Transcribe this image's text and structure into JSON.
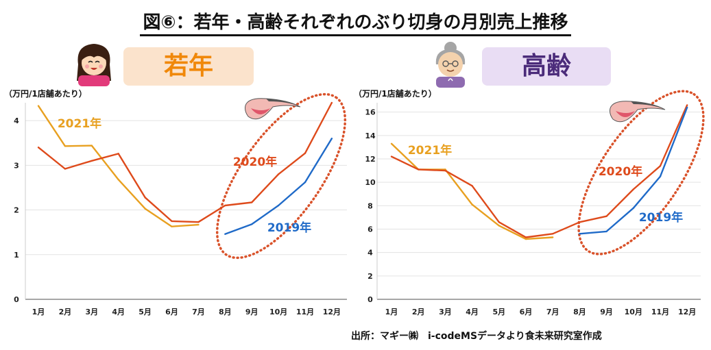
{
  "title": "図⑥：若年・高齢それぞれのぶり切身の月別売上推移",
  "source": "出所：マギー㈱　i-codeMSデータより食未来研究室作成",
  "icons": {
    "young_person": "young-woman-icon",
    "elderly_person": "elderly-woman-icon",
    "fish": "yellowtail-fillet-icon"
  },
  "colors": {
    "y2021": "#e8a020",
    "y2020": "#de4a1b",
    "y2019": "#1f6ac8",
    "highlight": "#d9522a",
    "young_badge_bg": "#fbe3cc",
    "young_badge_text": "#f0880a",
    "elder_badge_bg": "#e9ddf4",
    "elder_badge_text": "#4b2b7a"
  },
  "chart_data": [
    {
      "type": "line",
      "title": "若年",
      "ylabel": "（万円/1店舗あたり）",
      "xlabel": "",
      "categories": [
        "1月",
        "2月",
        "3月",
        "4月",
        "5月",
        "6月",
        "7月",
        "8月",
        "9月",
        "10月",
        "11月",
        "12月"
      ],
      "ylim": [
        0,
        4.4
      ],
      "yticks": [
        0,
        1,
        2,
        3,
        4
      ],
      "series": [
        {
          "name": "2021年",
          "values": [
            4.33,
            3.43,
            3.44,
            2.68,
            2.03,
            1.63,
            1.67,
            null,
            null,
            null,
            null,
            null
          ]
        },
        {
          "name": "2020年",
          "values": [
            3.4,
            2.92,
            3.1,
            3.26,
            2.28,
            1.75,
            1.73,
            2.1,
            2.17,
            2.8,
            3.27,
            4.4
          ]
        },
        {
          "name": "2019年",
          "values": [
            null,
            null,
            null,
            null,
            null,
            null,
            null,
            1.46,
            1.68,
            2.1,
            2.62,
            3.6
          ]
        }
      ],
      "annotations": [
        "2021年",
        "2020年",
        "2019年"
      ]
    },
    {
      "type": "line",
      "title": "高齢",
      "ylabel": "（万円/1店舗あたり）",
      "xlabel": "",
      "categories": [
        "1月",
        "2月",
        "3月",
        "4月",
        "5月",
        "6月",
        "7月",
        "8月",
        "9月",
        "10月",
        "11月",
        "12月"
      ],
      "ylim": [
        0,
        16.8
      ],
      "yticks": [
        0,
        2,
        4,
        6,
        8,
        10,
        12,
        14,
        16
      ],
      "series": [
        {
          "name": "2021年",
          "values": [
            13.3,
            11.1,
            11.1,
            8.1,
            6.3,
            5.15,
            5.3,
            null,
            null,
            null,
            null,
            null
          ]
        },
        {
          "name": "2020年",
          "values": [
            12.2,
            11.1,
            11.0,
            9.7,
            6.6,
            5.3,
            5.6,
            6.6,
            7.1,
            9.4,
            11.4,
            16.6
          ]
        },
        {
          "name": "2019年",
          "values": [
            null,
            null,
            null,
            null,
            null,
            null,
            null,
            5.6,
            5.8,
            7.8,
            10.5,
            16.4
          ]
        }
      ],
      "annotations": [
        "2021年",
        "2020年",
        "2019年"
      ]
    }
  ]
}
